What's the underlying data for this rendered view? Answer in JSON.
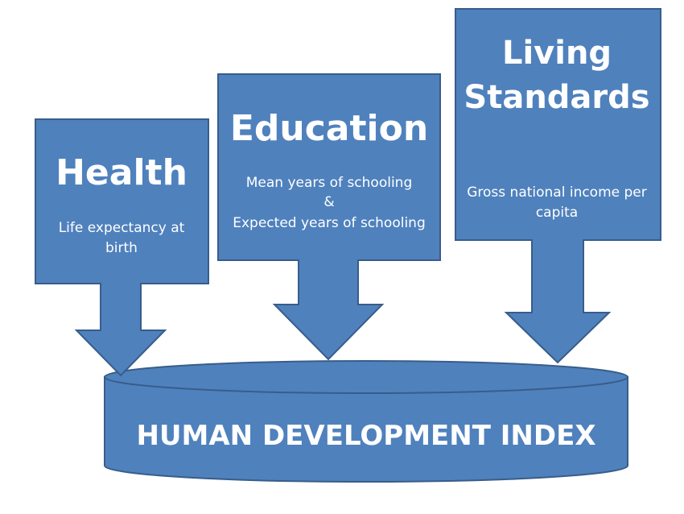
{
  "colors": {
    "fill": "#4f81bd",
    "stroke": "#385d8a",
    "text": "#ffffff"
  },
  "health": {
    "title": "Health",
    "desc_line1": "Life expectancy at",
    "desc_line2": "birth"
  },
  "education": {
    "title": "Education",
    "desc_line1": "Mean years of schooling",
    "desc_line2": "&",
    "desc_line3": "Expected years of schooling"
  },
  "living_standards": {
    "title_line1": "Living",
    "title_line2": "Standards",
    "desc_line1": "Gross national income per",
    "desc_line2": "capita"
  },
  "hdi": {
    "label": "HUMAN DEVELOPMENT INDEX"
  }
}
